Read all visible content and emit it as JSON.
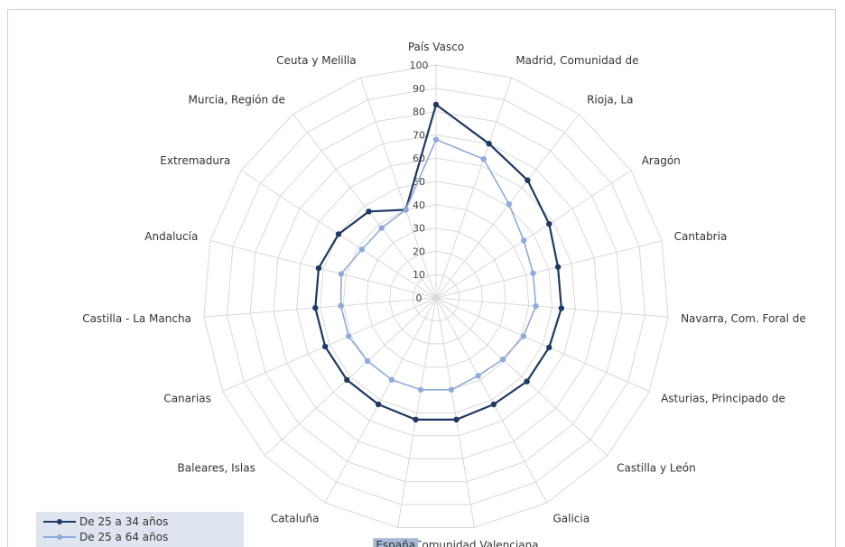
{
  "chart_data": {
    "type": "radar",
    "categories": [
      "País Vasco",
      "Madrid, Comunidad de",
      "Rioja, La",
      "Aragón",
      "Cantabria",
      "Navarra, Com. Foral de",
      "Asturias, Principado de",
      "Castilla y León",
      "Galicia",
      "Comunidad Valenciana",
      "España",
      "Cataluña",
      "Baleares, Islas",
      "Canarias",
      "Castilla - La Mancha",
      "Andalucía",
      "Extremadura",
      "Murcia, Región de",
      "Ceuta y Melilla"
    ],
    "series": [
      {
        "name": "De 25 a 34 años",
        "color": "#1f3864",
        "values": [
          83,
          70,
          64,
          58,
          54,
          54,
          53,
          53,
          52,
          53,
          53,
          52,
          52,
          52,
          52,
          52,
          50,
          47,
          40
        ]
      },
      {
        "name": "De 25 a 64 años",
        "color": "#8faadc",
        "values": [
          68,
          63,
          51,
          45,
          43,
          43,
          41,
          39,
          38,
          40,
          40,
          40,
          40,
          41,
          41,
          42,
          38,
          38,
          40
        ]
      }
    ],
    "radial_ticks": [
      "0",
      "10",
      "20",
      "30",
      "40",
      "50",
      "60",
      "70",
      "80",
      "90",
      "100"
    ],
    "rmax": 100,
    "highlighted_category": "España",
    "legend_position": "bottom-left"
  }
}
